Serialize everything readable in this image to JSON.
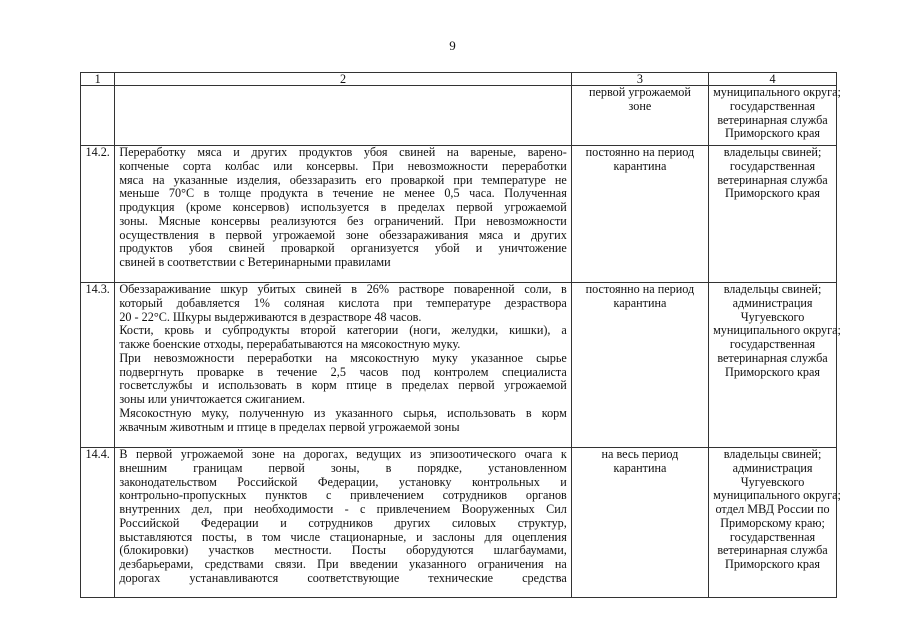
{
  "page_number": "9",
  "headers": [
    "1",
    "2",
    "3",
    "4"
  ],
  "rows": [
    {
      "num": "",
      "text": [],
      "term": [
        "первой угрожаемой",
        "зоне"
      ],
      "resp": [
        "муниципального округа;",
        "государственная",
        "ветеринарная служба",
        "Приморского края"
      ]
    },
    {
      "num": "14.2.",
      "text": [
        "Переработку мяса и других продуктов убоя свиней на вареные, варено-",
        "копченые сорта колбас или консервы. При невозможности переработки",
        "мяса на указанные изделия, обеззаразить его проваркой при температуре не",
        "меньше 70°С в толще продукта в течение не менее 0,5 часа. Полученная",
        "продукция (кроме консервов) используется в пределах первой угрожаемой",
        "зоны. Мясные консервы реализуются без ограничений. При невозможности",
        "осуществления в первой угрожаемой зоне обеззараживания мяса и других",
        "продуктов убоя свиней проваркой организуется убой и уничтожение",
        "свиней в соответствии с  Ветеринарными правилами"
      ],
      "term": [
        "постоянно на период",
        "карантина"
      ],
      "resp": [
        "владельцы свиней;",
        "государственная",
        "ветеринарная служба",
        "Приморского края"
      ]
    },
    {
      "num": "14.3.",
      "text": [
        "Обеззараживание шкур убитых свиней в 26% растворе поваренной соли, в",
        "который добавляется 1% соляная кислота при температуре дезраствора",
        "20 - 22°С. Шкуры выдерживаются в дезрастворе 48 часов.",
        "Кости, кровь и субпродукты второй категории (ноги, желудки, кишки), а",
        "также боенские отходы, перерабатываются на мясокостную муку.",
        "При невозможности переработки на мясокостную муку указанное сырье",
        "подвергнуть проварке в течение 2,5 часов под контролем специалиста",
        "госветслужбы и использовать в корм птице в пределах первой угрожаемой",
        "зоны или уничтожается сжиганием.",
        "Мясокостную муку, полученную из указанного сырья, использовать в корм",
        "жвачным животным и птице в пределах первой угрожаемой зоны"
      ],
      "term": [
        "постоянно на период",
        "карантина"
      ],
      "resp": [
        "владельцы свиней;",
        "администрация",
        "Чугуевского",
        "муниципального округа;",
        "государственная",
        "ветеринарная служба",
        "Приморского края"
      ]
    },
    {
      "num": "14.4.",
      "text": [
        "В первой угрожаемой зоне на дорогах, ведущих из эпизоотического очага к",
        "внешним границам первой зоны, в порядке, установленном",
        "законодательством Российской Федерации, установку контрольных и",
        "контрольно-пропускных пунктов с привлечением сотрудников органов",
        "внутренних дел, при необходимости - с привлечением Вооруженных Сил",
        "Российской Федерации и сотрудников других силовых структур,",
        "выставляются посты, в том числе стационарные, и заслоны для оцепления",
        "(блокировки) участков местности. Посты оборудуются шлагбаумами,",
        "дезбарьерами, средствами связи. При введении указанного ограничения на",
        "дорогах устанавливаются соответствующие технические средства"
      ],
      "term": [
        "на весь период",
        "карантина"
      ],
      "resp": [
        "владельцы свиней;",
        "администрация",
        "Чугуевского",
        "муниципального округа;",
        "отдел МВД России по",
        "Приморскому краю;",
        "государственная",
        "ветеринарная служба",
        "Приморского края"
      ]
    }
  ]
}
